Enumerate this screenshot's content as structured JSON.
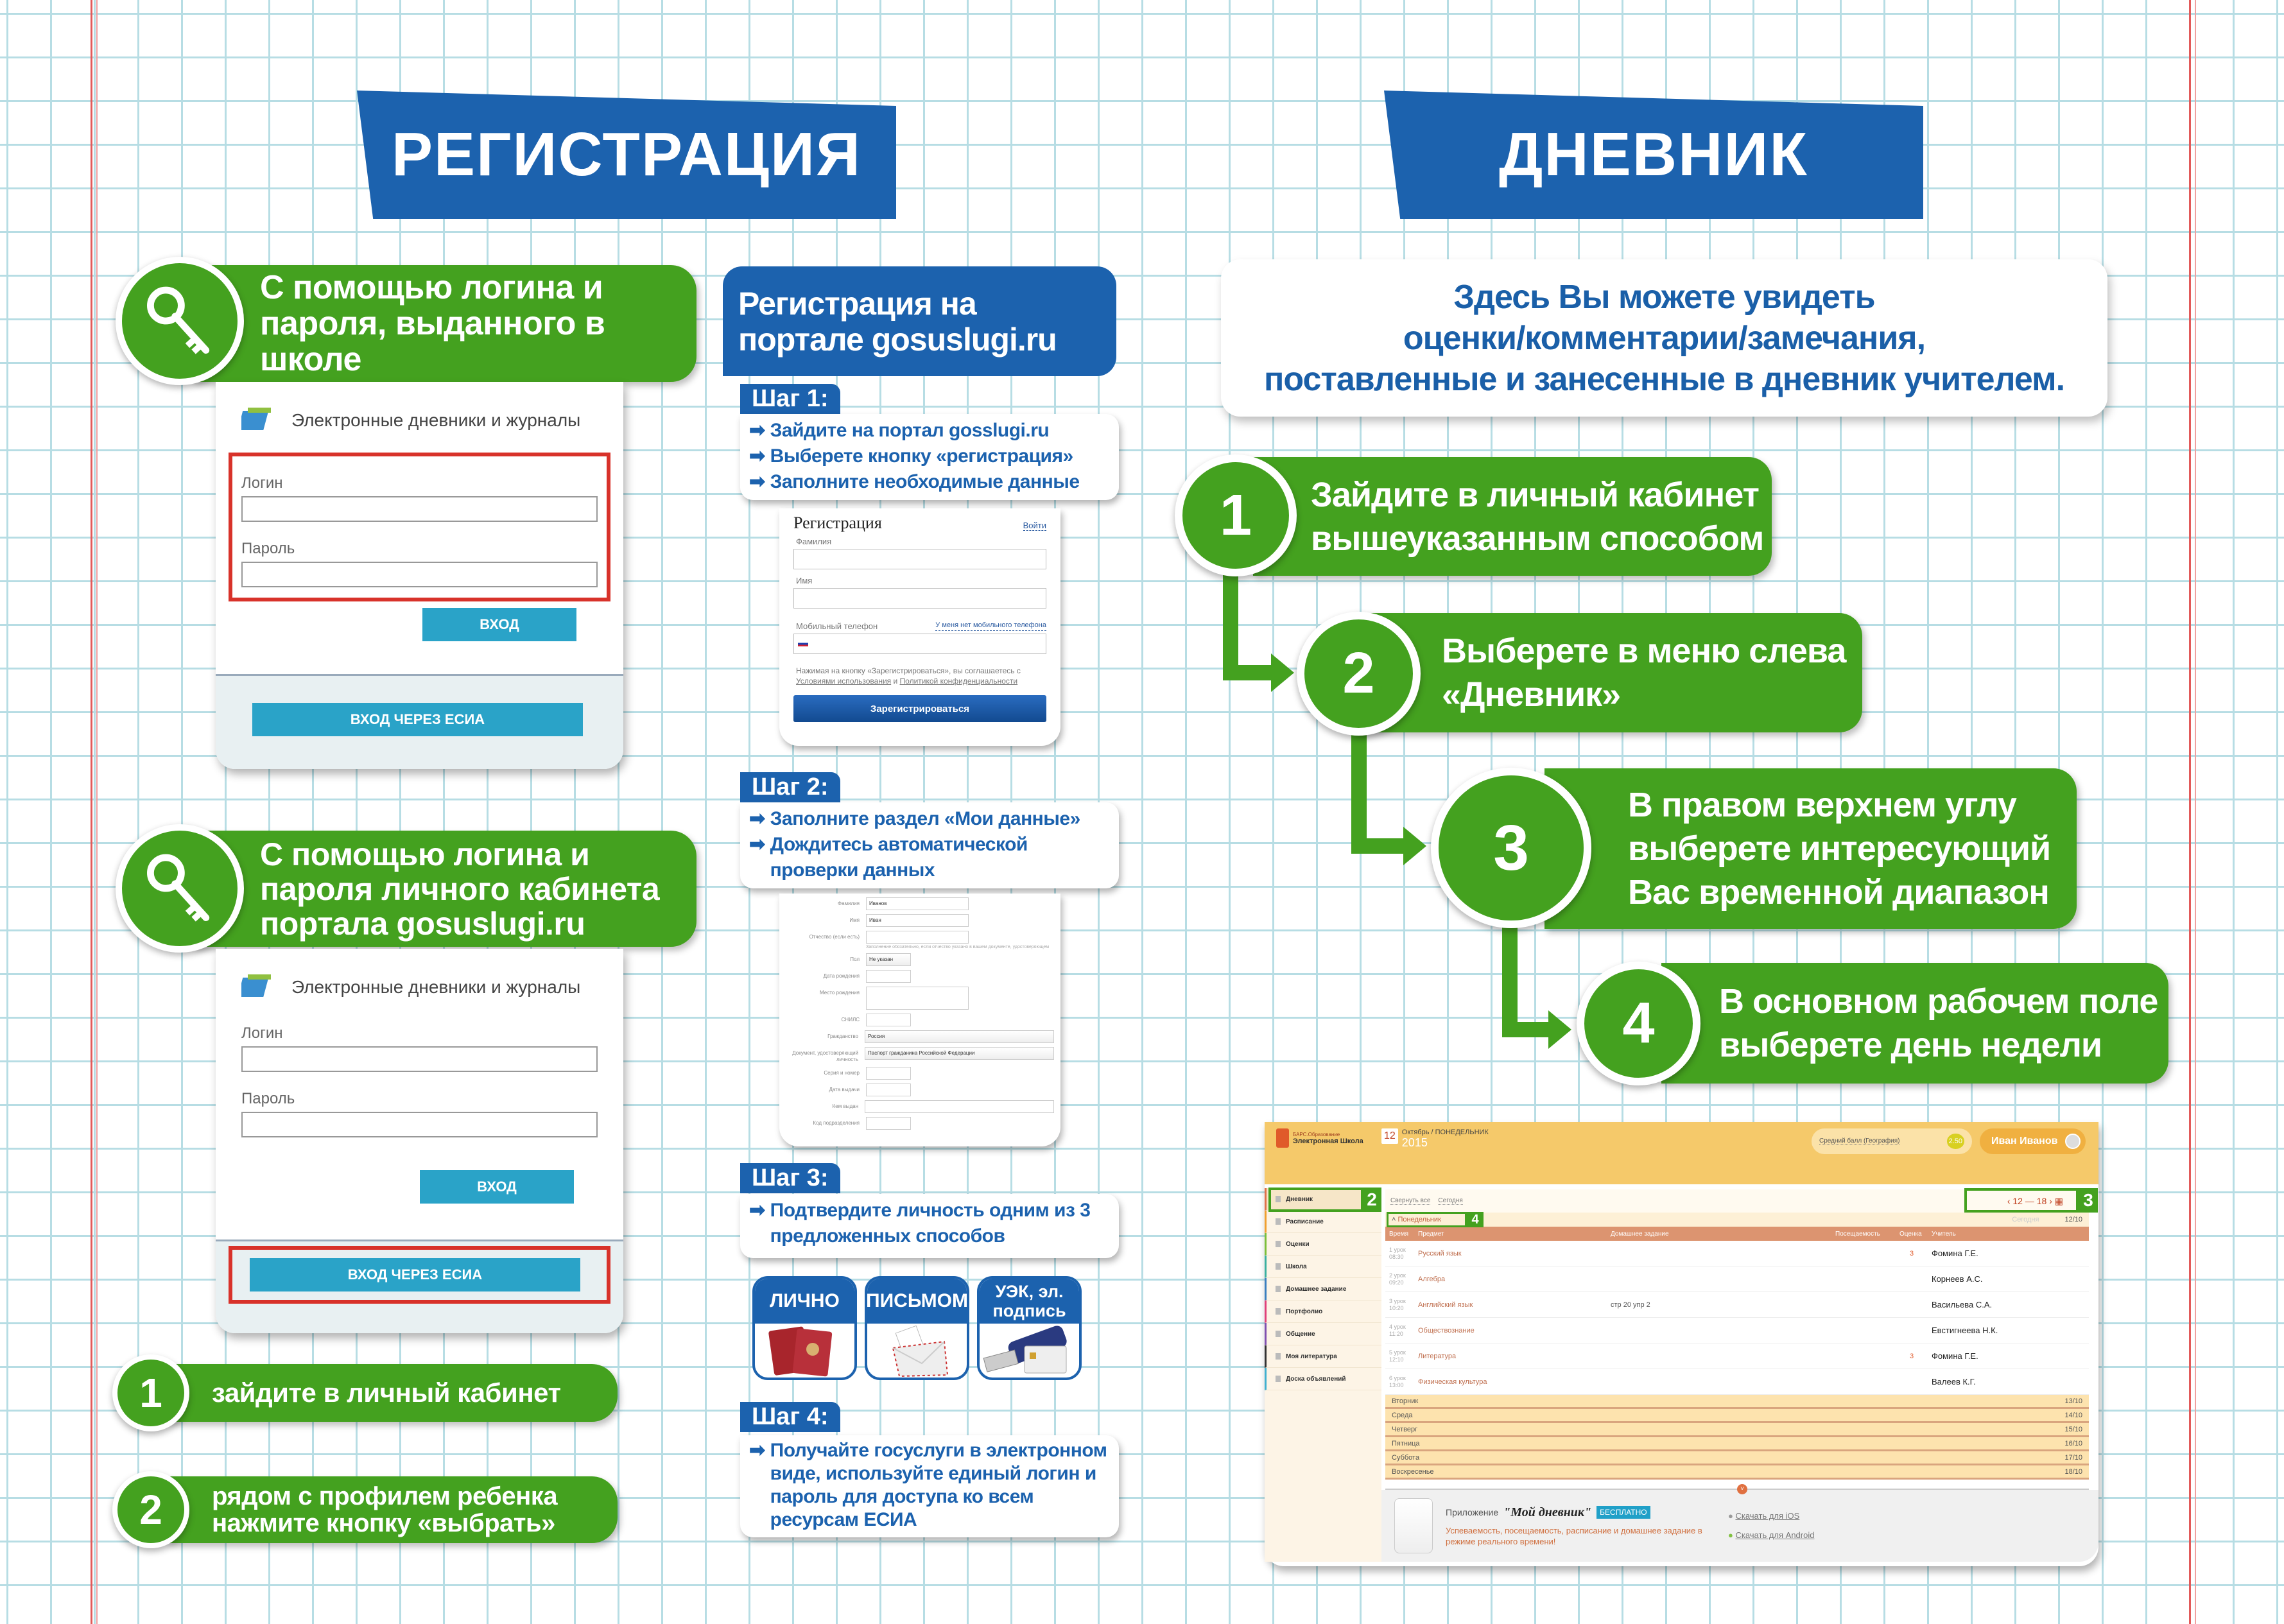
{
  "colors": {
    "green": "#44a11f",
    "blue": "#1c62ae",
    "text_blue": "#1a5fa8",
    "esia_button": "#2aa3c8"
  },
  "left": {
    "title": "РЕГИСТРАЦИЯ",
    "method1": {
      "text": "С помощью логина и пароля, выданного в школе",
      "icon": "key-icon"
    },
    "method2": {
      "text": "С помощью логина и пароля личного кабинета портала gosuslugi.ru",
      "icon": "key-icon"
    },
    "login_card": {
      "logo_text": "Электронные дневники и журналы",
      "login_label": "Логин",
      "password_label": "Пароль",
      "login_button": "ВХОД",
      "esia_button": "ВХОД ЧЕРЕЗ ЕСИА"
    },
    "steps": [
      {
        "num": "1",
        "text": "зайдите в личный кабинет"
      },
      {
        "num": "2",
        "text": "рядом с профилем ребенка нажмите кнопку «выбрать»"
      }
    ]
  },
  "portal": {
    "title": "Регистрация на портале gosuslugi.ru",
    "step1": {
      "label": "Шаг 1:",
      "items": [
        "Зайдите на портал gosslugi.ru",
        "Выберете кнопку «регистрация»",
        "Заполните необходимые данные"
      ]
    },
    "reg_form": {
      "title": "Регистрация",
      "login_link": "Войти",
      "surname": "Фамилия",
      "name": "Имя",
      "phone": "Мобильный телефон",
      "no_phone": "У меня нет мобильного телефона",
      "agree_pre": "Нажимая на кнопку «Зарегистрироваться», вы соглашаетесь с ",
      "terms": "Условиями использования",
      "and": " и ",
      "privacy": "Политикой конфиденциальности",
      "submit": "Зарегистрироваться"
    },
    "step2": {
      "label": "Шаг 2:",
      "items": [
        "Заполните раздел «Мои данные»",
        "Дождитесь автоматической проверки данных"
      ]
    },
    "data_form": {
      "hint": "Заполнение обязательно, если отчество указано в вашем документе, удостоверяющем",
      "rows": [
        {
          "label": "Фамилия",
          "value": "Иванов",
          "w": "m"
        },
        {
          "label": "Имя",
          "value": "Иван",
          "w": "m"
        },
        {
          "label": "Отчество (если есть)",
          "value": "",
          "w": "m"
        },
        {
          "label": "Пол",
          "value": "Не указан",
          "w": "s",
          "select": true
        },
        {
          "label": "Дата рождения",
          "value": "",
          "w": "s",
          "cal": true
        },
        {
          "label": "Место рождения",
          "value": "",
          "w": "m",
          "tall": true
        },
        {
          "label": "СНИЛС",
          "value": "",
          "w": "s"
        },
        {
          "label": "Гражданство",
          "value": "Россия",
          "w": "l",
          "select": true
        },
        {
          "label": "Документ, удостоверяющий личность",
          "value": "Паспорт гражданина Российской Федерации",
          "w": "l",
          "select": true
        },
        {
          "label": "Серия и номер",
          "value": "",
          "w": "s"
        },
        {
          "label": "Дата выдачи",
          "value": "",
          "w": "s",
          "cal": true
        },
        {
          "label": "Кем выдан",
          "value": "",
          "w": "l"
        },
        {
          "label": "Код подразделения",
          "value": "",
          "w": "s"
        }
      ]
    },
    "step3": {
      "label": "Шаг 3:",
      "items": [
        "Подтвердите личность одним из 3 предложенных способов"
      ],
      "methods": [
        {
          "title": "ЛИЧНО",
          "icon": "passport-icon"
        },
        {
          "title": "ПИСЬМОМ",
          "icon": "envelope-icon"
        },
        {
          "title": "УЭК, эл. подпись",
          "icon": "usb-token-icon"
        }
      ]
    },
    "step4": {
      "label": "Шаг 4:",
      "items": [
        "Получайте госуслуги в электронном виде, используйте единый логин и пароль для доступа ко всем ресурсам ЕСИА"
      ]
    }
  },
  "right": {
    "title": "ДНЕВНИК",
    "intro": [
      "Здесь Вы можете увидеть",
      "оценки/комментарии/замечания,",
      "поставленные и занесенные в дневник учителем."
    ],
    "steps": [
      {
        "num": "1",
        "lines": [
          "Зайдите в личный кабинет",
          "вышеуказанным способом"
        ]
      },
      {
        "num": "2",
        "lines": [
          "Выберете в меню слева",
          "«Дневник»"
        ]
      },
      {
        "num": "3",
        "lines": [
          "В правом верхнем углу",
          "выберете интересующий",
          "Вас временной диапазон"
        ]
      },
      {
        "num": "4",
        "lines": [
          "В основном рабочем поле",
          "выберете день недели"
        ]
      }
    ]
  },
  "diary": {
    "brand_top": "БАРС.Образование",
    "brand": "Электронная Школа",
    "date_day": "12",
    "date_text": "Октябрь / ПОНЕДЕЛЬНИК",
    "date_year": "2015",
    "avg_label": "Средний балл (География)",
    "avg_value": "2.50",
    "user": "Иван Иванов",
    "menu": [
      {
        "label": "Дневник",
        "color": "#e0704a"
      },
      {
        "label": "Расписание",
        "color": "#f0a030"
      },
      {
        "label": "Оценки",
        "color": "#7cbf3a"
      },
      {
        "label": "Школа",
        "color": "#3ab0a0"
      },
      {
        "label": "Домашнее задание",
        "color": "#3a7fc0"
      },
      {
        "label": "Портфолио",
        "color": "#e0407a"
      },
      {
        "label": "Общение",
        "color": "#8050b0"
      },
      {
        "label": "Моя литература",
        "color": "#333333"
      },
      {
        "label": "Доска объявлений",
        "color": "#40b0d0"
      }
    ],
    "collapse_all": "Свернуть все",
    "today": "Сегодня",
    "range": "12 — 18",
    "monday": "Понедельник",
    "monday_today": "Сегодня",
    "monday_date": "12/10",
    "columns": [
      "Время",
      "Предмет",
      "Домашнее задание",
      "Посещаемость",
      "Оценка",
      "Учитель"
    ],
    "lessons": [
      {
        "n": "1 урок",
        "t": "08:30",
        "subject": "Русский язык",
        "hw": "",
        "att": "",
        "mark": "3",
        "teacher": "Фомина Г.Е."
      },
      {
        "n": "2 урок",
        "t": "09:20",
        "subject": "Алгебра",
        "hw": "",
        "att": "",
        "mark": "",
        "teacher": "Корнеев А.С."
      },
      {
        "n": "3 урок",
        "t": "10:20",
        "subject": "Английский язык",
        "hw": "стр 20 упр 2",
        "att": "",
        "mark": "",
        "teacher": "Васильева С.А."
      },
      {
        "n": "4 урок",
        "t": "11:20",
        "subject": "Обществознание",
        "hw": "",
        "att": "",
        "mark": "",
        "teacher": "Евстигнеева Н.К."
      },
      {
        "n": "5 урок",
        "t": "12:10",
        "subject": "Литература",
        "hw": "",
        "att": "",
        "mark": "3",
        "teacher": "Фомина Г.Е."
      },
      {
        "n": "6 урок",
        "t": "13:00",
        "subject": "Физическая культура",
        "hw": "",
        "att": "",
        "mark": "",
        "teacher": "Валеев К.Г."
      }
    ],
    "days": [
      {
        "d": "Вторник",
        "date": "13/10"
      },
      {
        "d": "Среда",
        "date": "14/10"
      },
      {
        "d": "Четверг",
        "date": "15/10"
      },
      {
        "d": "Пятница",
        "date": "16/10"
      },
      {
        "d": "Суббота",
        "date": "17/10"
      },
      {
        "d": "Воскресенье",
        "date": "18/10"
      }
    ],
    "app_pre": "Приложение",
    "app_name": "\"Мой дневник\"",
    "app_free": "БЕСПЛАТНО",
    "app_desc": "Успеваемость, посещаемость, расписание и домашнее задание в режиме реального времени!",
    "ios": "Скачать для iOS",
    "android": "Скачать для Android",
    "markers": [
      "2",
      "3",
      "4"
    ]
  }
}
